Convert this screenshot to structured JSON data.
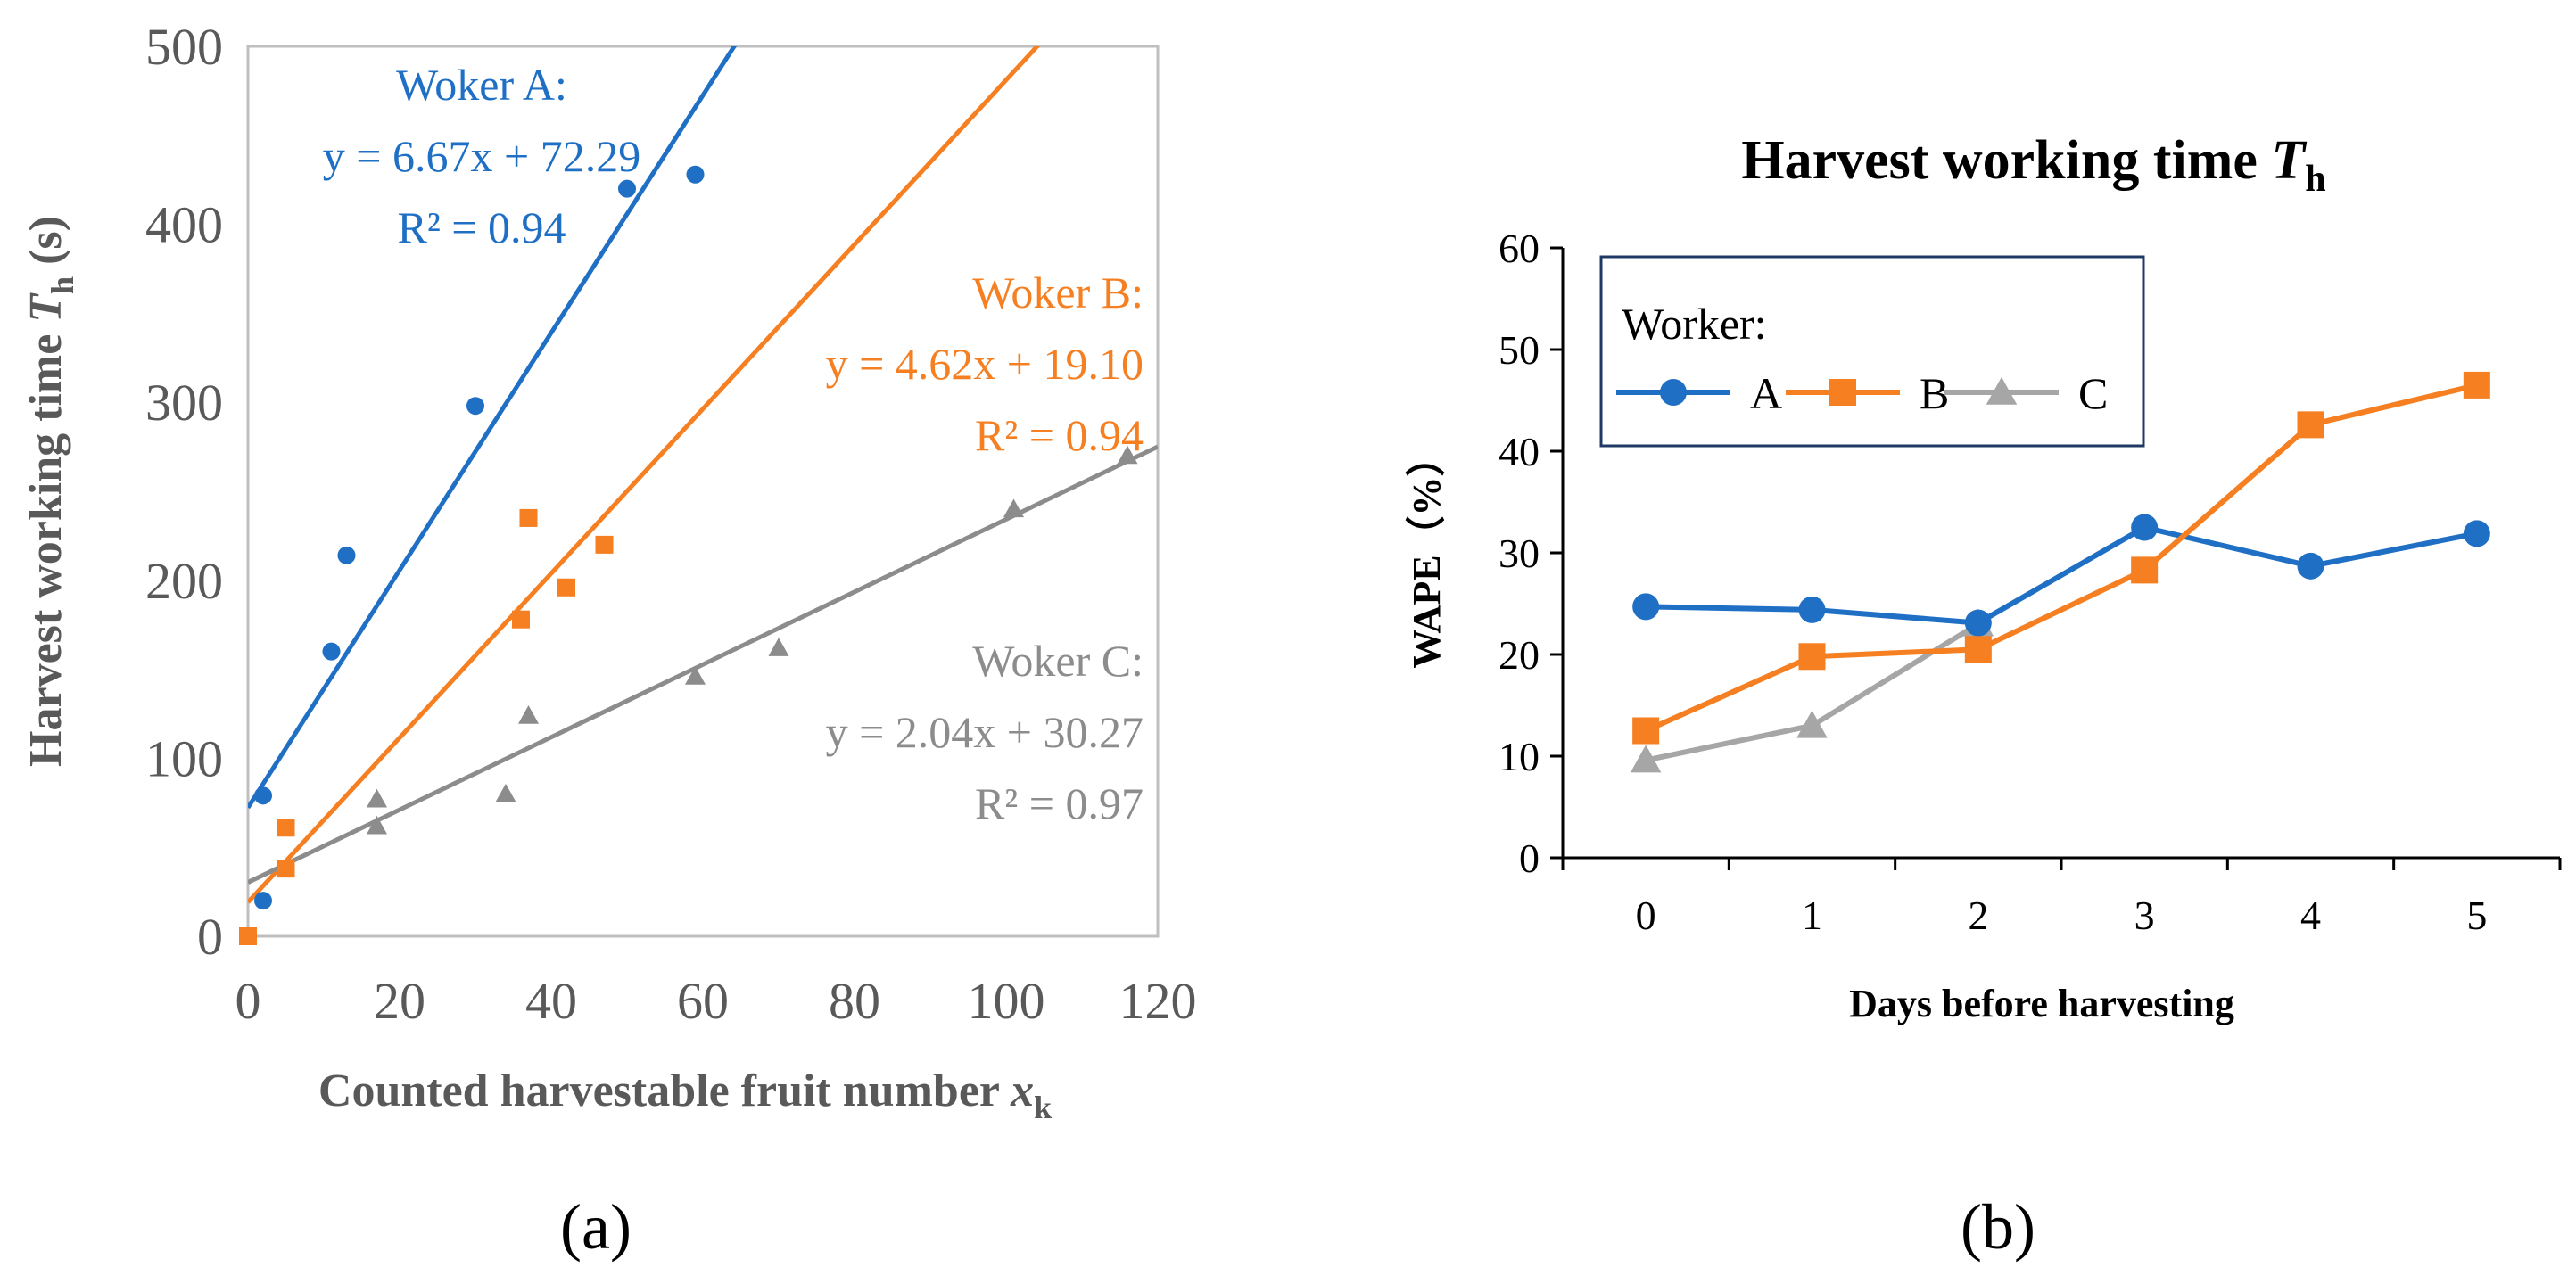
{
  "captions": {
    "a": "(a)",
    "b": "(b)"
  },
  "colors": {
    "A": "#1F6FC5",
    "B": "#F57F21",
    "C": "#8C8C8C",
    "C_line_b": "#A6A6A6"
  },
  "chart_data": [
    {
      "id": "a",
      "type": "scatter",
      "title": "",
      "xlabel": "Counted harvestable fruit number ",
      "xlabel_var": "x",
      "xlabel_sub": "k",
      "ylabel": "Harvest working time ",
      "ylabel_var": "T",
      "ylabel_sub": "h",
      "ylabel_unit": " (s)",
      "xlim": [
        0,
        120
      ],
      "ylim": [
        0,
        500
      ],
      "xticks": [
        0,
        20,
        40,
        60,
        80,
        100,
        120
      ],
      "yticks": [
        0,
        100,
        200,
        300,
        400,
        500
      ],
      "grid": false,
      "series": [
        {
          "key": "A",
          "marker": "circle",
          "points": [
            [
              2,
              20
            ],
            [
              2,
              79
            ],
            [
              11,
              160
            ],
            [
              13,
              214
            ],
            [
              30,
              298
            ],
            [
              50,
              420
            ],
            [
              59,
              428
            ]
          ],
          "fit": {
            "slope": 6.67,
            "intercept": 72.29
          },
          "annotation": [
            "Woker A:",
            "y = 6.67x + 72.29",
            "R² = 0.94"
          ]
        },
        {
          "key": "B",
          "marker": "square",
          "points": [
            [
              0,
              0
            ],
            [
              5,
              38
            ],
            [
              5,
              61
            ],
            [
              36,
              178
            ],
            [
              37,
              235
            ],
            [
              42,
              196
            ],
            [
              47,
              220
            ]
          ],
          "fit": {
            "slope": 4.62,
            "intercept": 19.1
          },
          "annotation": [
            "Woker B:",
            "y = 4.62x + 19.10",
            "R² = 0.94"
          ]
        },
        {
          "key": "C",
          "marker": "triangle",
          "points": [
            [
              17,
              62
            ],
            [
              17,
              77
            ],
            [
              34,
              80
            ],
            [
              37,
              124
            ],
            [
              59,
              146
            ],
            [
              70,
              162
            ],
            [
              101,
              240
            ],
            [
              116,
              270
            ]
          ],
          "fit": {
            "slope": 2.04,
            "intercept": 30.27
          },
          "annotation": [
            "Woker C:",
            "y = 2.04x + 30.27",
            "R² = 0.97"
          ]
        }
      ]
    },
    {
      "id": "b",
      "type": "line",
      "title": "Harvest working time ",
      "title_var": "T",
      "title_sub": "h",
      "xlabel": "Days before harvesting",
      "ylabel": "WAPE（%）",
      "xlim": [
        -0.5,
        5.5
      ],
      "ylim": [
        0,
        60
      ],
      "categories": [
        0,
        1,
        2,
        3,
        4,
        5
      ],
      "yticks": [
        0,
        10,
        20,
        30,
        40,
        50,
        60
      ],
      "grid": false,
      "legend": {
        "title": "Worker:",
        "placement": "top-left"
      },
      "series": [
        {
          "name": "A",
          "marker": "circle",
          "x": [
            0,
            1,
            2,
            3,
            4,
            5
          ],
          "values": [
            24.7,
            24.4,
            23.1,
            32.5,
            28.7,
            31.9
          ]
        },
        {
          "name": "B",
          "marker": "square",
          "x": [
            0,
            1,
            2,
            3,
            4,
            5
          ],
          "values": [
            12.5,
            19.8,
            20.5,
            28.3,
            42.6,
            46.5
          ]
        },
        {
          "name": "C",
          "marker": "triangle",
          "x": [
            0,
            1,
            2
          ],
          "values": [
            9.6,
            13.0,
            23.0
          ]
        }
      ]
    }
  ]
}
